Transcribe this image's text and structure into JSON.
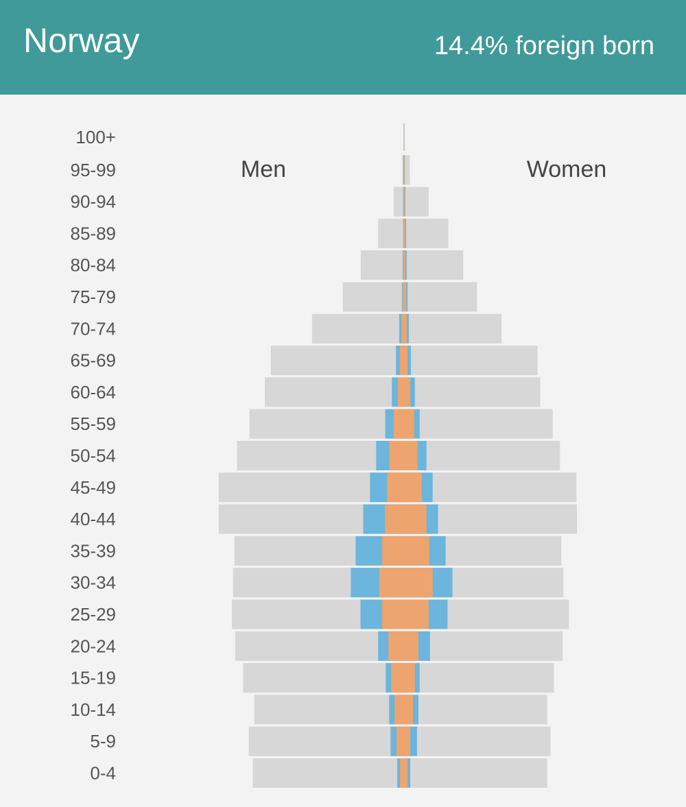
{
  "header": {
    "title": "Norway",
    "subtitle": "14.4% foreign born",
    "background_color": "#409a9a"
  },
  "chart_data": {
    "type": "bar",
    "subtype": "population-pyramid",
    "title": "Norway",
    "subtitle": "14.4% foreign born",
    "side_labels": {
      "left": "Men",
      "right": "Women"
    },
    "colors": {
      "total": "#d7d7d7",
      "foreign_born_europe": "#ee a46d",
      "foreign_born_other": "#6bb4dc"
    },
    "series_notes": "Values are relative population shares per age group (0-100 scale). total = all residents; foreign_total = all foreign born; foreign_inner = inner (orange) foreign-born segment.",
    "categories": [
      "100+",
      "95-99",
      "90-94",
      "85-89",
      "80-84",
      "75-79",
      "70-74",
      "65-69",
      "60-64",
      "55-59",
      "50-54",
      "45-49",
      "40-44",
      "35-39",
      "30-34",
      "25-29",
      "20-24",
      "15-19",
      "10-14",
      "5-9",
      "0-4"
    ],
    "men": {
      "total": [
        0.2,
        1.0,
        5.4,
        13.4,
        22.4,
        31.7,
        47.6,
        68.9,
        72.0,
        79.9,
        86.3,
        95.8,
        95.8,
        87.7,
        88.4,
        89.0,
        87.3,
        83.2,
        77.5,
        80.3,
        78.2
      ],
      "foreign_total": [
        0.2,
        0.4,
        0.5,
        0.5,
        0.7,
        1.1,
        2.5,
        4.2,
        6.3,
        9.7,
        14.4,
        17.6,
        21.1,
        25.0,
        27.5,
        22.5,
        13.4,
        9.5,
        7.7,
        7.0,
        3.5
      ],
      "foreign_inner": [
        0.1,
        0.2,
        0.2,
        0.3,
        0.4,
        0.7,
        1.4,
        2.1,
        3.2,
        5.3,
        7.7,
        8.8,
        9.9,
        11.3,
        12.7,
        11.3,
        8.1,
        6.7,
        4.9,
        3.9,
        2.1
      ]
    },
    "women": {
      "total": [
        0.2,
        3.0,
        12.7,
        22.9,
        30.6,
        37.7,
        50.4,
        69.0,
        70.4,
        76.8,
        80.6,
        89.1,
        89.4,
        81.3,
        82.4,
        85.2,
        82.0,
        77.5,
        74.0,
        75.7,
        74.0
      ],
      "foreign_total": [
        0.2,
        0.4,
        0.7,
        1.1,
        1.4,
        1.8,
        2.5,
        3.5,
        5.6,
        8.1,
        11.6,
        14.8,
        17.6,
        21.5,
        25.0,
        22.5,
        13.4,
        8.1,
        7.4,
        6.7,
        3.2
      ],
      "foreign_inner": [
        0.1,
        0.2,
        0.3,
        0.6,
        0.7,
        1.1,
        1.4,
        1.8,
        3.2,
        5.3,
        7.0,
        9.2,
        11.6,
        13.0,
        14.8,
        12.7,
        7.4,
        5.6,
        4.6,
        3.2,
        1.8
      ]
    }
  }
}
